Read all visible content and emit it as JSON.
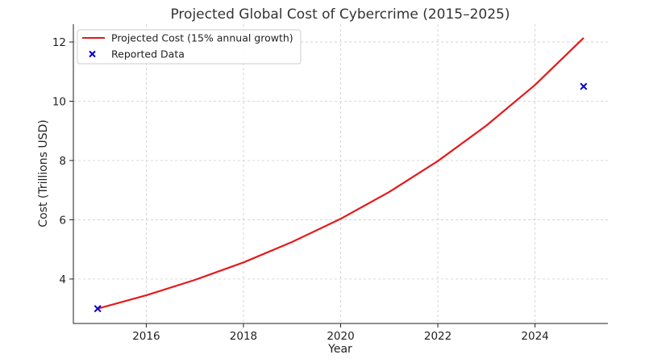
{
  "chart_data": {
    "type": "line",
    "title": "Projected Global Cost of Cybercrime (2015–2025)",
    "xlabel": "Year",
    "ylabel": "Cost (Trillions USD)",
    "xlim": [
      2014.5,
      2025.5
    ],
    "ylim": [
      2.5,
      12.6
    ],
    "xticks": [
      2016,
      2018,
      2020,
      2022,
      2024
    ],
    "yticks": [
      4,
      6,
      8,
      10,
      12
    ],
    "grid": true,
    "legend_position": "top-left",
    "series": [
      {
        "name": "Projected Cost (15% annual growth)",
        "kind": "line",
        "color": "#e31a1c",
        "x": [
          2015,
          2016,
          2017,
          2018,
          2019,
          2020,
          2021,
          2022,
          2023,
          2024,
          2025
        ],
        "y": [
          3.0,
          3.45,
          3.97,
          4.56,
          5.25,
          6.03,
          6.94,
          7.98,
          9.18,
          10.55,
          12.14
        ]
      },
      {
        "name": "Reported Data",
        "kind": "scatter",
        "marker": "x",
        "color": "#0000cc",
        "x": [
          2015,
          2025
        ],
        "y": [
          3.0,
          10.5
        ]
      }
    ]
  }
}
